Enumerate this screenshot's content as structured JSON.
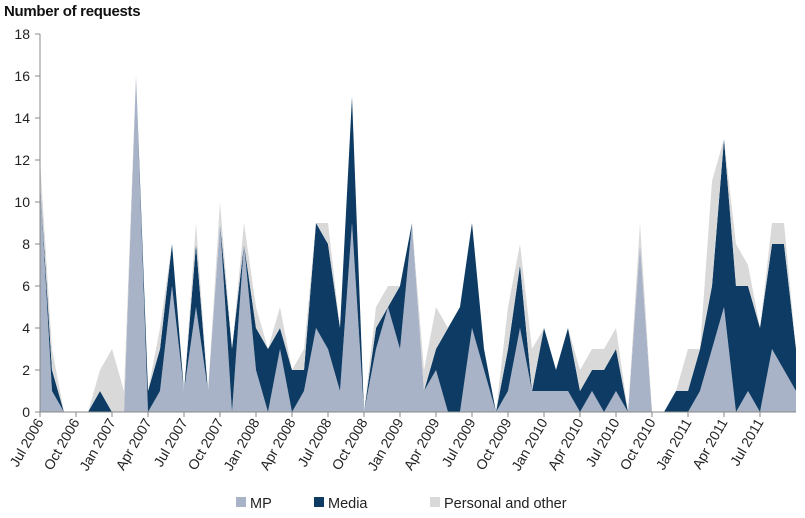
{
  "chart_data": {
    "type": "area",
    "stacked": true,
    "ylabel": "Number of requests",
    "ylim": [
      0,
      18
    ],
    "yticks": [
      0,
      2,
      4,
      6,
      8,
      10,
      12,
      14,
      16,
      18
    ],
    "grid": false,
    "legend_position": "bottom",
    "x_tick_labels": [
      "Jul 2006",
      "Oct 2006",
      "Jan 2007",
      "Apr 2007",
      "Jul 2007",
      "Oct 2007",
      "Jan 2008",
      "Apr 2008",
      "Jul 2008",
      "Oct 2008",
      "Jan 2009",
      "Apr 2009",
      "Jul 2009",
      "Oct 2009",
      "Jan 2010",
      "Apr 2010",
      "Jul 2010",
      "Oct 2010",
      "Jan 2011",
      "Apr 2011",
      "Jul 2011"
    ],
    "months_per_tick": 3,
    "series": [
      {
        "name": "MP",
        "color": "#a9b3c7",
        "values": [
          11,
          1,
          0,
          0,
          0,
          0,
          0,
          0,
          16,
          0,
          1,
          6,
          1,
          5,
          1,
          9,
          0,
          8,
          2,
          0,
          3,
          0,
          1,
          4,
          3,
          1,
          9,
          0,
          3,
          5,
          3,
          9,
          1,
          2,
          0,
          0,
          4,
          2,
          0,
          1,
          4,
          1,
          1,
          1,
          1,
          0,
          1,
          0,
          1,
          0,
          8,
          0,
          0,
          0,
          0,
          1,
          3,
          5,
          0,
          1,
          0,
          3,
          2,
          1
        ]
      },
      {
        "name": "Media",
        "color": "#0d3b63",
        "values": [
          0,
          1,
          0,
          0,
          0,
          1,
          0,
          0,
          0,
          1,
          2,
          2,
          0,
          3,
          0,
          0,
          3,
          0,
          2,
          3,
          1,
          2,
          1,
          5,
          5,
          3,
          6,
          0,
          1,
          0,
          3,
          0,
          0,
          1,
          4,
          5,
          5,
          1,
          0,
          2,
          3,
          0,
          3,
          1,
          3,
          1,
          1,
          2,
          2,
          0,
          0,
          0,
          0,
          1,
          1,
          2,
          3,
          8,
          6,
          5,
          4,
          5,
          6,
          2
        ]
      },
      {
        "name": "Personal and other",
        "color": "#d9d9d9",
        "values": [
          1,
          1,
          0,
          0,
          0,
          1,
          3,
          1,
          0,
          0,
          1,
          0,
          0,
          1,
          0,
          1,
          0,
          1,
          1,
          0,
          1,
          0,
          1,
          0,
          1,
          0,
          0,
          0,
          1,
          1,
          0,
          0,
          1,
          2,
          0,
          0,
          0,
          0,
          0,
          2,
          1,
          2,
          0,
          0,
          0,
          1,
          1,
          1,
          1,
          0,
          1,
          0,
          0,
          0,
          2,
          0,
          5,
          0,
          2,
          1,
          0,
          1,
          1,
          0
        ]
      }
    ]
  },
  "legend": {
    "mp_label": "MP",
    "media_label": "Media",
    "other_label": "Personal and other"
  }
}
